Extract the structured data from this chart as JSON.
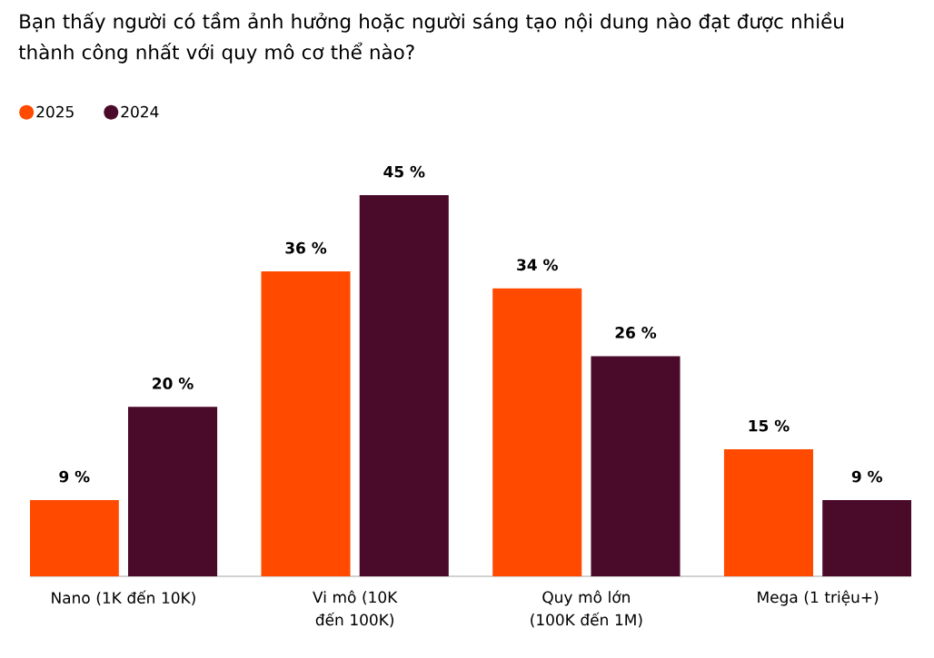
{
  "chart_data": {
    "type": "bar",
    "title": "Bạn thấy người có tầm ảnh hưởng hoặc người sáng tạo nội dung nào đạt được nhiều thành công nhất với quy mô cơ thể nào?",
    "categories": [
      "Nano (1K đến 10K)",
      "Vi mô (10K đến 100K)",
      "Quy mô lớn (100K đến 1M)",
      "Mega (1 triệu+)"
    ],
    "series": [
      {
        "name": "2025",
        "color": "#ff4a00",
        "values": [
          9,
          36,
          34,
          15
        ],
        "value_labels": [
          "9 %",
          "36 %",
          "34 %",
          "15 %"
        ]
      },
      {
        "name": "2024",
        "color": "#4a0a2a",
        "values": [
          20,
          45,
          26,
          9
        ],
        "value_labels": [
          "20 %",
          "45 %",
          "26 %",
          "9 %"
        ]
      }
    ],
    "legend": "top left"
  }
}
